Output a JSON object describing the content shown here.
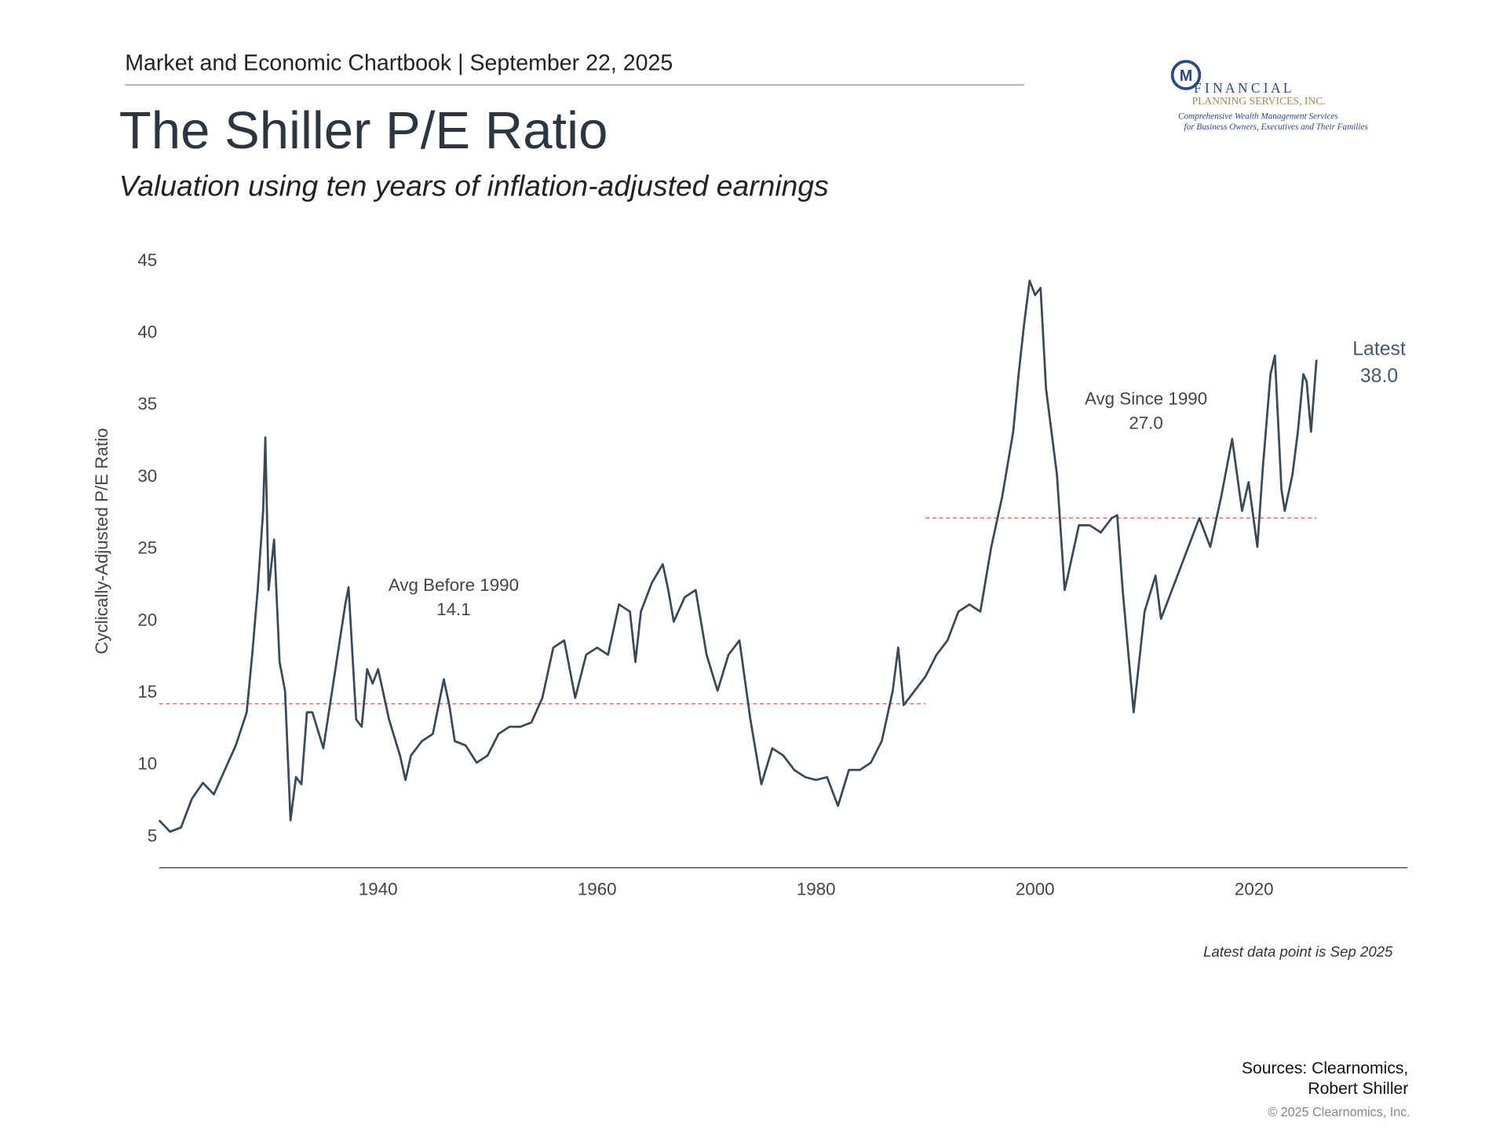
{
  "header": {
    "kicker": "Market and Economic Chartbook | September 22, 2025",
    "logo": {
      "mark": "M",
      "name": "F I N A N C I A L",
      "subname": "PLANNING SERVICES, INC.",
      "tagline1": "Comprehensive Wealth Management Services",
      "tagline2": "for Business Owners, Executives and Their Families"
    }
  },
  "chart_data": {
    "type": "line",
    "title": "The Shiller P/E Ratio",
    "subtitle": "Valuation using ten years of inflation-adjusted earnings",
    "y_label": "Cyclically-Adjusted P/E Ratio",
    "color": "#3a4955",
    "x": [
      1920.0,
      1921.0,
      1922.0,
      1923.0,
      1924.0,
      1925.0,
      1926.0,
      1927.0,
      1928.0,
      1928.5,
      1929.0,
      1929.5,
      1929.7,
      1930.0,
      1930.5,
      1931.0,
      1931.5,
      1932.0,
      1932.5,
      1933.0,
      1933.5,
      1934.0,
      1935.0,
      1936.0,
      1937.0,
      1937.3,
      1938.0,
      1938.5,
      1939.0,
      1939.5,
      1940.0,
      1941.0,
      1942.0,
      1942.5,
      1943.0,
      1944.0,
      1945.0,
      1946.0,
      1946.5,
      1947.0,
      1948.0,
      1949.0,
      1950.0,
      1951.0,
      1952.0,
      1953.0,
      1954.0,
      1955.0,
      1956.0,
      1957.0,
      1958.0,
      1959.0,
      1960.0,
      1961.0,
      1962.0,
      1963.0,
      1963.5,
      1964.0,
      1965.0,
      1966.0,
      1966.5,
      1967.0,
      1968.0,
      1969.0,
      1970.0,
      1971.0,
      1972.0,
      1973.0,
      1974.0,
      1975.0,
      1976.0,
      1977.0,
      1978.0,
      1979.0,
      1980.0,
      1981.0,
      1982.0,
      1983.0,
      1984.0,
      1985.0,
      1986.0,
      1987.0,
      1987.5,
      1988.0,
      1989.0,
      1990.0,
      1991.0,
      1992.0,
      1993.0,
      1994.0,
      1995.0,
      1996.0,
      1997.0,
      1998.0,
      1998.5,
      1999.0,
      1999.5,
      2000.0,
      2000.5,
      2001.0,
      2002.0,
      2002.7,
      2003.0,
      2004.0,
      2005.0,
      2006.0,
      2007.0,
      2007.5,
      2008.0,
      2009.0,
      2009.5,
      2010.0,
      2011.0,
      2011.5,
      2012.0,
      2013.0,
      2014.0,
      2015.0,
      2016.0,
      2017.0,
      2018.0,
      2018.9,
      2019.5,
      2020.3,
      2020.8,
      2021.5,
      2021.9,
      2022.5,
      2022.8,
      2023.5,
      2024.0,
      2024.5,
      2024.8,
      2025.2,
      2025.7
    ],
    "values": [
      6.0,
      5.2,
      5.5,
      7.5,
      8.6,
      7.8,
      9.5,
      11.2,
      13.5,
      17.5,
      22,
      27.5,
      32.6,
      22,
      25.5,
      17,
      15,
      6,
      9,
      8.5,
      13.5,
      13.5,
      11,
      16,
      21,
      22.2,
      13,
      12.5,
      16.5,
      15.5,
      16.5,
      13,
      10.5,
      8.8,
      10.5,
      11.5,
      12,
      15.8,
      14,
      11.5,
      11.2,
      10,
      10.5,
      12,
      12.5,
      12.5,
      12.8,
      14.5,
      18,
      18.5,
      14.5,
      17.5,
      18,
      17.5,
      21,
      20.5,
      17,
      20.5,
      22.5,
      23.8,
      22,
      19.8,
      21.5,
      22,
      17.5,
      15,
      17.5,
      18.5,
      13,
      8.5,
      11,
      10.5,
      9.5,
      9,
      8.8,
      9,
      7.0,
      9.5,
      9.5,
      10,
      11.5,
      15,
      18,
      14,
      15,
      16,
      17.5,
      18.5,
      20.5,
      21,
      20.5,
      25,
      28.5,
      33,
      37,
      40.5,
      43.5,
      42.5,
      43,
      36,
      30,
      22,
      23,
      26.5,
      26.5,
      26,
      27,
      27.2,
      22,
      13.5,
      17,
      20.5,
      23,
      20,
      21,
      23,
      25,
      27,
      25,
      28.5,
      32.5,
      27.5,
      29.5,
      25,
      30.5,
      37,
      38.3,
      29,
      27.5,
      30,
      33,
      37,
      36.5,
      33,
      38.0
    ],
    "xlim": [
      1920,
      2034
    ],
    "ylim": [
      2.7,
      46
    ],
    "xticks": [
      1940,
      1960,
      1980,
      2000,
      2020
    ],
    "yticks": [
      5,
      10,
      15,
      20,
      25,
      30,
      35,
      40,
      45
    ],
    "reference_lines": [
      {
        "name": "Avg Before 1990",
        "value": 14.1,
        "label": "14.1",
        "x_range": [
          1920,
          1990
        ],
        "color": "#e07a7a"
      },
      {
        "name": "Avg Since 1990",
        "value": 27.0,
        "label": "27.0",
        "x_range": [
          1990,
          2025.7
        ],
        "color": "#e07a7a"
      }
    ],
    "latest": {
      "name": "Latest",
      "value": 38.0,
      "label": "38.0"
    },
    "note": "Latest data point is Sep 2025"
  },
  "footer": {
    "sources1": "Sources: Clearnomics,",
    "sources2": "Robert Shiller",
    "copyright": "© 2025 Clearnomics, Inc."
  }
}
